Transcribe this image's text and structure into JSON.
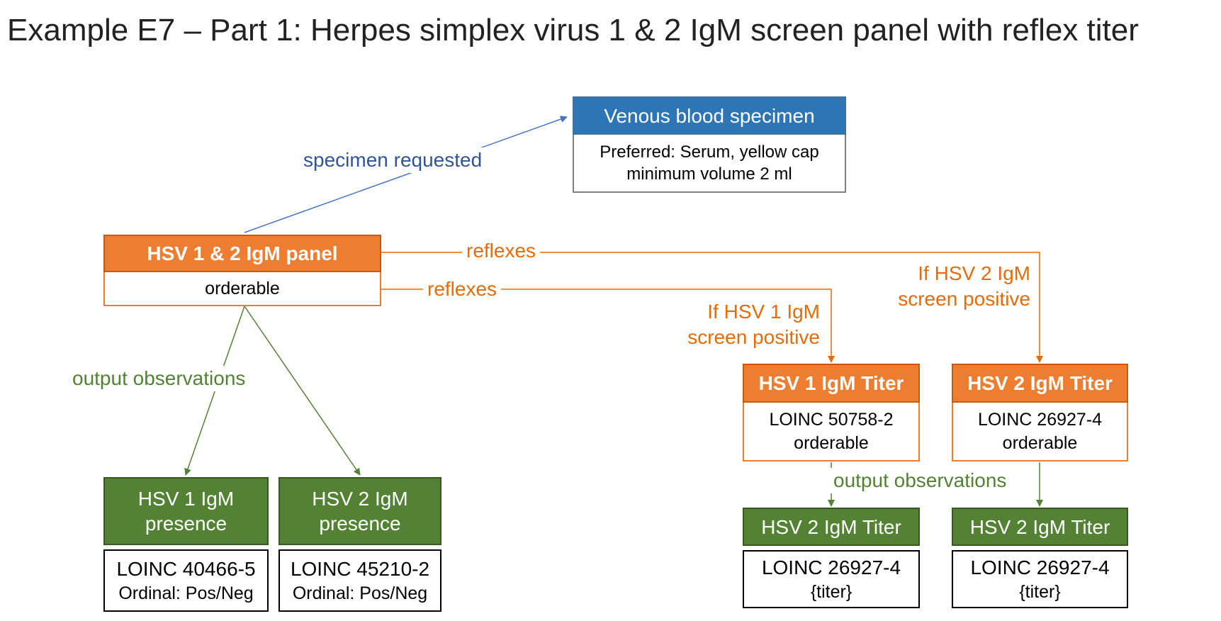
{
  "title": "Example E7 – Part 1: Herpes simplex virus 1 & 2 IgM screen panel  with reflex titer",
  "colors": {
    "blue": "#2e75b6",
    "orange": "#ed7d31",
    "green": "#548235"
  },
  "specimen": {
    "header": "Venous blood specimen",
    "line1": "Preferred: Serum, yellow cap",
    "line2": "minimum volume 2 ml"
  },
  "panel": {
    "header": "HSV 1 & 2 IgM panel",
    "body": "orderable"
  },
  "titer1": {
    "header": "HSV 1 IgM Titer",
    "line1": "LOINC 50758-2",
    "line2": "orderable"
  },
  "titer2": {
    "header": "HSV 2 IgM Titer",
    "line1": "LOINC 26927-4",
    "line2": "orderable"
  },
  "obs1": {
    "header": "HSV 1 IgM presence",
    "line1": "LOINC 40466-5",
    "line2": "Ordinal: Pos/Neg"
  },
  "obs2": {
    "header": "HSV 2 IgM presence",
    "line1": "LOINC 45210-2",
    "line2": "Ordinal: Pos/Neg"
  },
  "titerObs1": {
    "header": "HSV 2 IgM Titer",
    "line1": "LOINC 26927-4",
    "line2": "{titer}"
  },
  "titerObs2": {
    "header": "HSV 2 IgM Titer",
    "line1": "LOINC 26927-4",
    "line2": "{titer}"
  },
  "labels": {
    "specimen_requested": "specimen requested",
    "reflexes_top": "reflexes",
    "reflexes_bottom": "reflexes",
    "if_hsv1": "If HSV 1 IgM\nscreen positive",
    "if_hsv2": "If HSV 2 IgM\nscreen positive",
    "output_obs_left": "output observations",
    "output_obs_right": "output observations"
  }
}
